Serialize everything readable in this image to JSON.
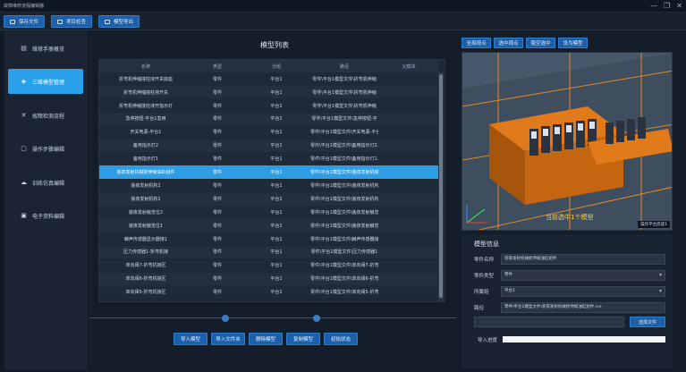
{
  "window": {
    "title": "故障维修流程编辑器"
  },
  "toolbar": {
    "save_label": "保存文件",
    "import_label": "项目检查",
    "export_label": "模型导出"
  },
  "sidebar": {
    "items": [
      {
        "label": "维修手册概览",
        "icon": "book-icon"
      },
      {
        "label": "三维模型管理",
        "icon": "cube-icon"
      },
      {
        "label": "故障检测流程",
        "icon": "wrench-icon"
      },
      {
        "label": "操作步骤编辑",
        "icon": "edit-icon"
      },
      {
        "label": "训练仿真编辑",
        "icon": "cloud-icon"
      },
      {
        "label": "电子资料编辑",
        "icon": "document-icon"
      }
    ]
  },
  "model_list": {
    "title": "模型列表",
    "columns": [
      "名称",
      "类型",
      "分组",
      "路径",
      "父模块"
    ],
    "rows": [
      [
        "折弯机伸缩撞柱液开关底座",
        "零件",
        "平台1",
        "零件\\平台1模型文件\\折弯机伸缩",
        ""
      ],
      [
        "折弯机伸缩撞柱液开关",
        "零件",
        "平台1",
        "零件\\平台1模型文件\\折弯机伸缩",
        ""
      ],
      [
        "折弯机伸缩撞柱液开指示灯",
        "零件",
        "平台1",
        "零件\\平台1模型文件\\折弯机伸缩",
        ""
      ],
      [
        "急停按钮-平台1急用",
        "零件",
        "平台1",
        "零件\\平台1模型文件\\急停按钮-平",
        ""
      ],
      [
        "开关电源-平台1",
        "零件",
        "平台1",
        "零件\\平台1模型文件\\开关电源-平台",
        ""
      ],
      [
        "备用指示灯2",
        "零件",
        "平台1",
        "零件\\平台1模型文件\\备用指示灯2.",
        ""
      ],
      [
        "备用指示灯1",
        "零件",
        "平台1",
        "零件\\平台1模型文件\\备用指示灯1.",
        ""
      ],
      [
        "装夜发射机械抓伸缩油缸组件",
        "零件",
        "平台1",
        "零件\\平台1模型文件\\装夜发射机械",
        ""
      ],
      [
        "装夜发射机构2",
        "零件",
        "平台1",
        "零件\\平台1模型文件\\装夜发射机构",
        ""
      ],
      [
        "装夜发射机构1",
        "零件",
        "平台1",
        "零件\\平台1模型文件\\装夜发射机构",
        ""
      ],
      [
        "装夜发射触觉位2",
        "零件",
        "平台1",
        "零件\\平台1模型文件\\装夜发射触觉",
        ""
      ],
      [
        "装夜发射触觉位1",
        "零件",
        "平台1",
        "零件\\平台1模型文件\\装夜发射触觉",
        ""
      ],
      [
        "棘声传感器显示器接1",
        "零件",
        "平台1",
        "零件\\平台1模型文件\\棘声传感器接",
        ""
      ],
      [
        "压力传感器1-折弯机接",
        "零件",
        "平台1",
        "零件\\平台1模型文件\\压力传感器1",
        ""
      ],
      [
        "单向阀7-折弯机接区",
        "零件",
        "平台1",
        "零件\\平台1模型文件\\单向阀7-折弯",
        ""
      ],
      [
        "单向阀6-折弯机接区",
        "零件",
        "平台1",
        "零件\\平台1模型文件\\单向阀6-折弯",
        ""
      ],
      [
        "单向阀5-折弯机接区",
        "零件",
        "平台1",
        "零件\\平台1模型文件\\单向阀5-折弯",
        ""
      ]
    ],
    "selected_index": 7
  },
  "actions": {
    "import_model": "导入模型",
    "import_folder": "导入文件夹",
    "delete_model": "删除模型",
    "copy_model": "复制模型",
    "init_state": "初始状态"
  },
  "viewport_tools": {
    "fit_all": "全局视点",
    "fit_selected": "选中视点",
    "hide_selected": "隐空选中",
    "set_model": "设为模型"
  },
  "viewport": {
    "status": "当前选中1个模型",
    "tag": "操作平台底座1"
  },
  "model_info": {
    "title": "模型信息",
    "name_label": "零件名称",
    "name_value": "装夜发射机械抓伸缩油缸组件",
    "type_label": "零件类型",
    "type_value": "零件",
    "group_label": "所属组",
    "group_value": "平台1",
    "path_label": "路径",
    "path_value": "零件\\平台1模型文件\\装夜发射机械抓伸缩油缸组件.ive",
    "choose_file": "选择文件",
    "progress_label": "导入进度",
    "progress": 1.0
  },
  "colors": {
    "accent": "#2aa0ea",
    "button": "#1d5fa8",
    "selected_row": "#2d9de6",
    "status_text": "#ffd24a"
  }
}
